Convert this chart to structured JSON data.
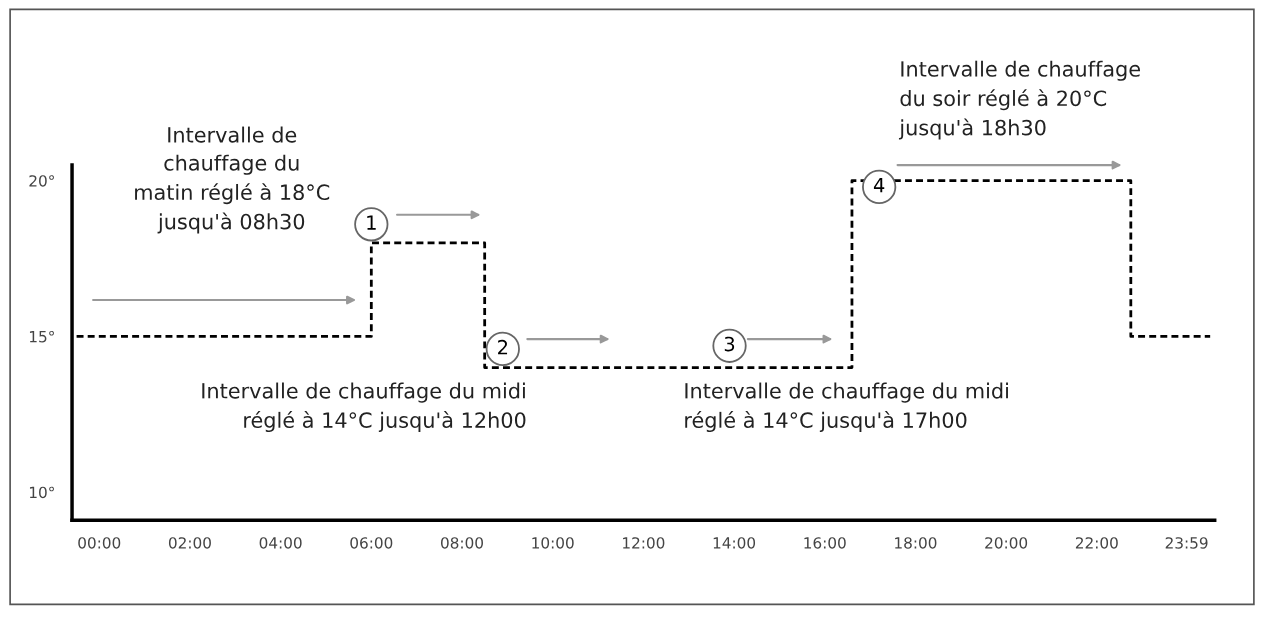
{
  "chart_data": {
    "type": "step",
    "x": [
      -0.5,
      6,
      6,
      8.5,
      8.5,
      16.6,
      16.6,
      22.75,
      22.75,
      24.5
    ],
    "series": [
      {
        "color": "#000000",
        "values": [
          15,
          15,
          18,
          18,
          14,
          14,
          20,
          20,
          15,
          15
        ]
      }
    ],
    "line_style": "dashed",
    "marker": "none",
    "grid": false,
    "legend": false,
    "xlim": [
      -0.6,
      24.6
    ],
    "xticks": [
      {
        "value": 0,
        "label": "00:00"
      },
      {
        "value": 2,
        "label": "02:00"
      },
      {
        "value": 4,
        "label": "04:00"
      },
      {
        "value": 6,
        "label": "06:00"
      },
      {
        "value": 8,
        "label": "08:00"
      },
      {
        "value": 10,
        "label": "10:00"
      },
      {
        "value": 12,
        "label": "12:00"
      },
      {
        "value": 14,
        "label": "14:00"
      },
      {
        "value": 16,
        "label": "16:00"
      },
      {
        "value": 18,
        "label": "18:00"
      },
      {
        "value": 20,
        "label": "20:00"
      },
      {
        "value": 22,
        "label": "22:00"
      },
      {
        "value": 23.98,
        "label": "23:59"
      }
    ],
    "ylim": [
      9.1,
      20.5
    ],
    "yticks": [
      {
        "value": 10,
        "label": "10°"
      },
      {
        "value": 15,
        "label": "15°"
      },
      {
        "value": 20,
        "label": "20°"
      }
    ],
    "annotations": [
      "Intervalle de\nchauffage du\nmatin réglé à 18°C\njusqu'à 08h30",
      "Intervalle de chauffage du midi\nréglé à 14°C jusqu'à 12h00",
      "Intervalle de chauffage du midi\nréglé à 14°C jusqu'à 17h00",
      "Intervalle de chauffage\ndu soir réglé à 20°C\njusqu'à 18h30",
      {
        "text": "1",
        "x": 6,
        "y": 18.6
      },
      {
        "text": "2",
        "x": 8.9,
        "y": 14.6
      },
      {
        "text": "3",
        "x": 13.9,
        "y": 14.7
      },
      {
        "text": "4",
        "x": 17.2,
        "y": 19.8
      }
    ]
  }
}
